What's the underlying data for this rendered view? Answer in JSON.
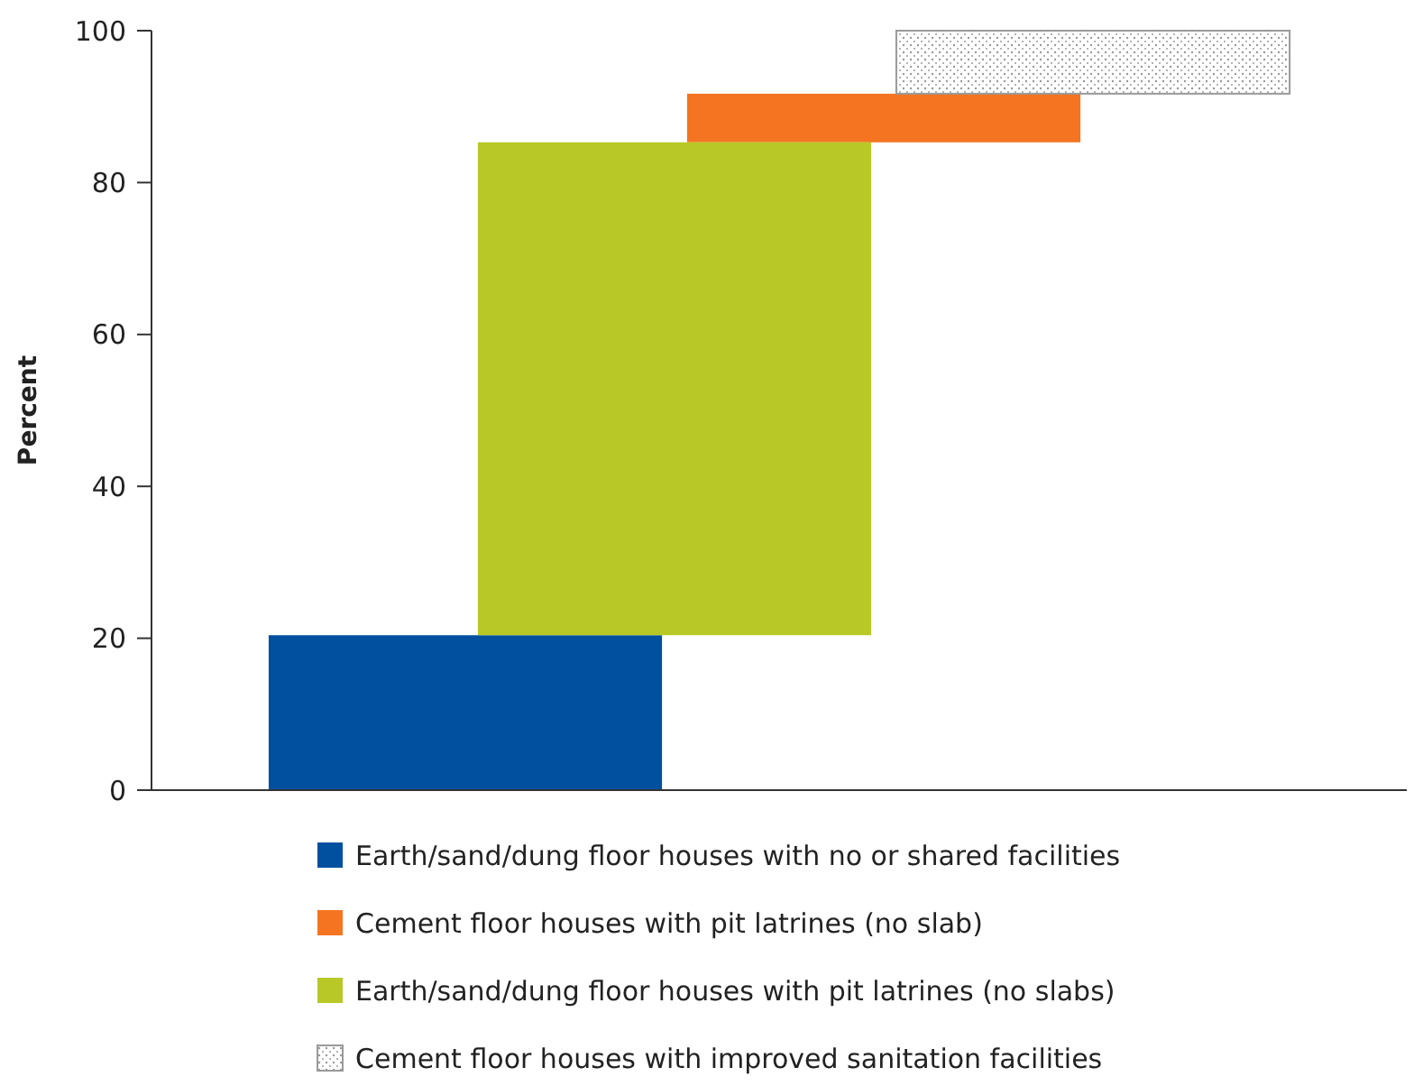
{
  "chart_data": {
    "type": "bar",
    "ylabel": "Percent",
    "categories": [
      null,
      null,
      null,
      null,
      null,
      null
    ],
    "ylim": [
      0,
      100
    ],
    "yticks": [
      0,
      20,
      40,
      60,
      80,
      100
    ],
    "grid": false,
    "legend": "bottom",
    "series": [
      {
        "name": "Earth/sand/dung floor houses with no or shared facilities",
        "color": "#0050a0",
        "values": [
          null,
          20.4,
          null,
          null,
          null,
          null
        ],
        "base": [
          null,
          0,
          null,
          null,
          null,
          null
        ]
      },
      {
        "name": "Cement floor houses with pit latrines (no slab)",
        "color": "#f47421",
        "values": [
          null,
          null,
          null,
          6.4,
          null,
          null
        ],
        "base": [
          null,
          null,
          null,
          85.3,
          null,
          null
        ]
      },
      {
        "name": "Earth/sand/dung floor houses with pit latrines (no slabs)",
        "color": "#b8c927",
        "values": [
          null,
          null,
          64.9,
          null,
          null,
          null
        ],
        "base": [
          null,
          null,
          20.4,
          null,
          null,
          null
        ]
      },
      {
        "name": "Cement floor houses with improved sanitation facilities",
        "color": "#9a9a9a",
        "values": [
          null,
          null,
          null,
          null,
          8.3,
          null
        ],
        "base": [
          null,
          null,
          null,
          null,
          91.7,
          null
        ]
      }
    ]
  }
}
